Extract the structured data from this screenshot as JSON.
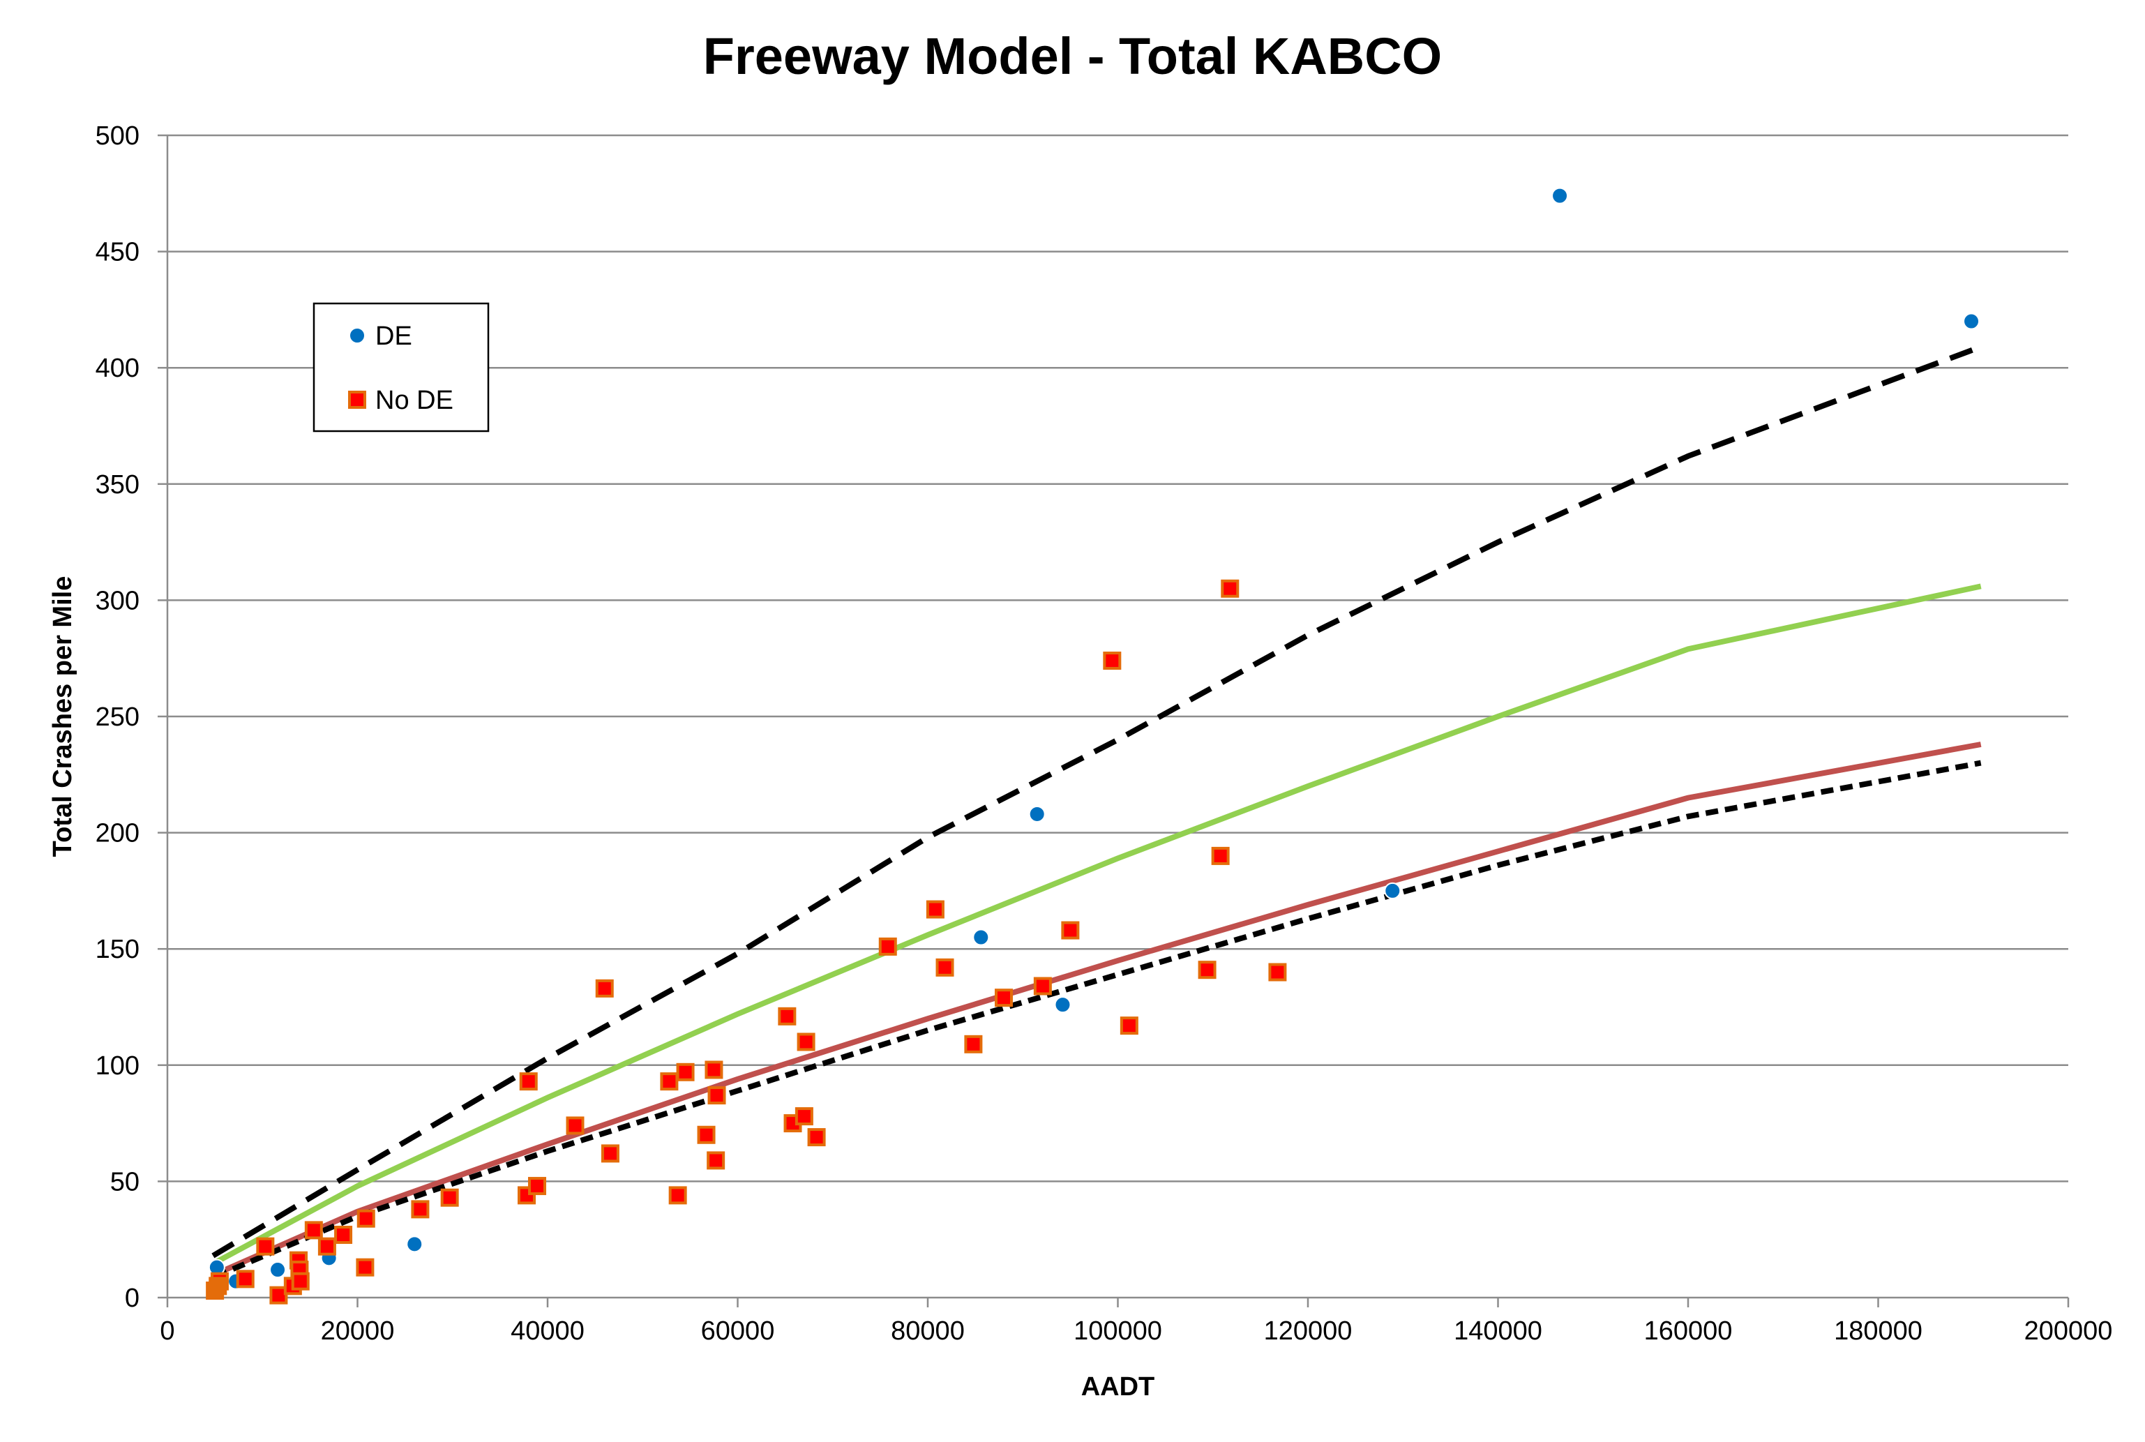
{
  "chart_data": {
    "type": "scatter",
    "title": "Freeway Model - Total KABCO",
    "xlabel": "AADT",
    "ylabel": "Total Crashes per Mile",
    "xlim": [
      0,
      200000
    ],
    "ylim": [
      0,
      500
    ],
    "x_ticks": [
      0,
      20000,
      40000,
      60000,
      80000,
      100000,
      120000,
      140000,
      160000,
      180000,
      200000
    ],
    "y_ticks": [
      0,
      50,
      100,
      150,
      200,
      250,
      300,
      350,
      400,
      450,
      500
    ],
    "x_tick_labels": [
      "0",
      "20000",
      "40000",
      "60000",
      "80000",
      "100000",
      "120000",
      "140000",
      "160000",
      "180000",
      "200000"
    ],
    "y_tick_labels": [
      "0",
      "50",
      "100",
      "150",
      "200",
      "250",
      "300",
      "350",
      "400",
      "450",
      "500"
    ],
    "grid": "horizontal",
    "legend": {
      "position": "upper-left"
    },
    "series": [
      {
        "name": "DE",
        "kind": "scatter",
        "marker": "circle",
        "color": "#0070C0",
        "points": [
          [
            5200,
            13
          ],
          [
            7200,
            7
          ],
          [
            11600,
            12
          ],
          [
            17000,
            17
          ],
          [
            26000,
            23
          ],
          [
            85600,
            155
          ],
          [
            91500,
            208
          ],
          [
            94200,
            126
          ],
          [
            128900,
            175
          ],
          [
            146500,
            474
          ],
          [
            189800,
            420
          ]
        ]
      },
      {
        "name": "No DE",
        "kind": "scatter",
        "marker": "square",
        "color": "#FF0000",
        "edge_color": "#E46C0A",
        "points": [
          [
            5500,
            7
          ],
          [
            8200,
            8
          ],
          [
            10300,
            22
          ],
          [
            11700,
            1
          ],
          [
            13200,
            5
          ],
          [
            13800,
            16
          ],
          [
            13900,
            12
          ],
          [
            14000,
            7
          ],
          [
            15400,
            29
          ],
          [
            16800,
            22
          ],
          [
            18500,
            27
          ],
          [
            20800,
            13
          ],
          [
            20900,
            34
          ],
          [
            26600,
            38
          ],
          [
            29700,
            43
          ],
          [
            37800,
            44
          ],
          [
            38000,
            93
          ],
          [
            38900,
            48
          ],
          [
            42900,
            74
          ],
          [
            46000,
            133
          ],
          [
            46600,
            62
          ],
          [
            52800,
            93
          ],
          [
            53700,
            44
          ],
          [
            54500,
            97
          ],
          [
            56700,
            70
          ],
          [
            57500,
            98
          ],
          [
            57700,
            59
          ],
          [
            57800,
            87
          ],
          [
            65200,
            121
          ],
          [
            65800,
            75
          ],
          [
            67000,
            78
          ],
          [
            67200,
            110
          ],
          [
            68300,
            69
          ],
          [
            75800,
            151
          ],
          [
            80800,
            167
          ],
          [
            81800,
            142
          ],
          [
            84800,
            109
          ],
          [
            88000,
            129
          ],
          [
            92100,
            134
          ],
          [
            95000,
            158
          ],
          [
            99400,
            274
          ],
          [
            101200,
            117
          ],
          [
            109400,
            141
          ],
          [
            110800,
            190
          ],
          [
            111800,
            305
          ],
          [
            116800,
            140
          ]
        ]
      },
      {
        "name": "",
        "kind": "scatter",
        "marker": "square",
        "color": "#E46C0A",
        "edge_color": "#E46C0A",
        "points": [
          [
            5000,
            3
          ],
          [
            5300,
            5
          ]
        ]
      },
      {
        "name": "",
        "kind": "line",
        "color": "#92D050",
        "dash": "solid",
        "points": [
          [
            5000,
            15
          ],
          [
            20000,
            48
          ],
          [
            40000,
            86
          ],
          [
            60000,
            122
          ],
          [
            80000,
            156
          ],
          [
            100000,
            189
          ],
          [
            120000,
            220
          ],
          [
            140000,
            250
          ],
          [
            160000,
            279
          ],
          [
            190800,
            306
          ]
        ]
      },
      {
        "name": "",
        "kind": "line",
        "color": "#C0504D",
        "dash": "solid",
        "points": [
          [
            5000,
            10
          ],
          [
            20000,
            37
          ],
          [
            40000,
            66
          ],
          [
            60000,
            94
          ],
          [
            80000,
            120
          ],
          [
            100000,
            145
          ],
          [
            120000,
            169
          ],
          [
            140000,
            192
          ],
          [
            160000,
            215
          ],
          [
            190800,
            238
          ]
        ]
      },
      {
        "name": "",
        "kind": "line",
        "color": "#000000",
        "dash": "long-dash",
        "points": [
          [
            4800,
            18
          ],
          [
            20000,
            55
          ],
          [
            40000,
            103
          ],
          [
            60000,
            148
          ],
          [
            80000,
            198
          ],
          [
            100000,
            240
          ],
          [
            120000,
            285
          ],
          [
            140000,
            325
          ],
          [
            160000,
            362
          ],
          [
            190800,
            409
          ]
        ]
      },
      {
        "name": "",
        "kind": "line",
        "color": "#000000",
        "dash": "short-dash",
        "points": [
          [
            5000,
            9
          ],
          [
            20000,
            35
          ],
          [
            40000,
            63
          ],
          [
            60000,
            89
          ],
          [
            80000,
            115
          ],
          [
            100000,
            139
          ],
          [
            120000,
            163
          ],
          [
            140000,
            186
          ],
          [
            160000,
            207
          ],
          [
            190800,
            230
          ]
        ]
      }
    ]
  }
}
